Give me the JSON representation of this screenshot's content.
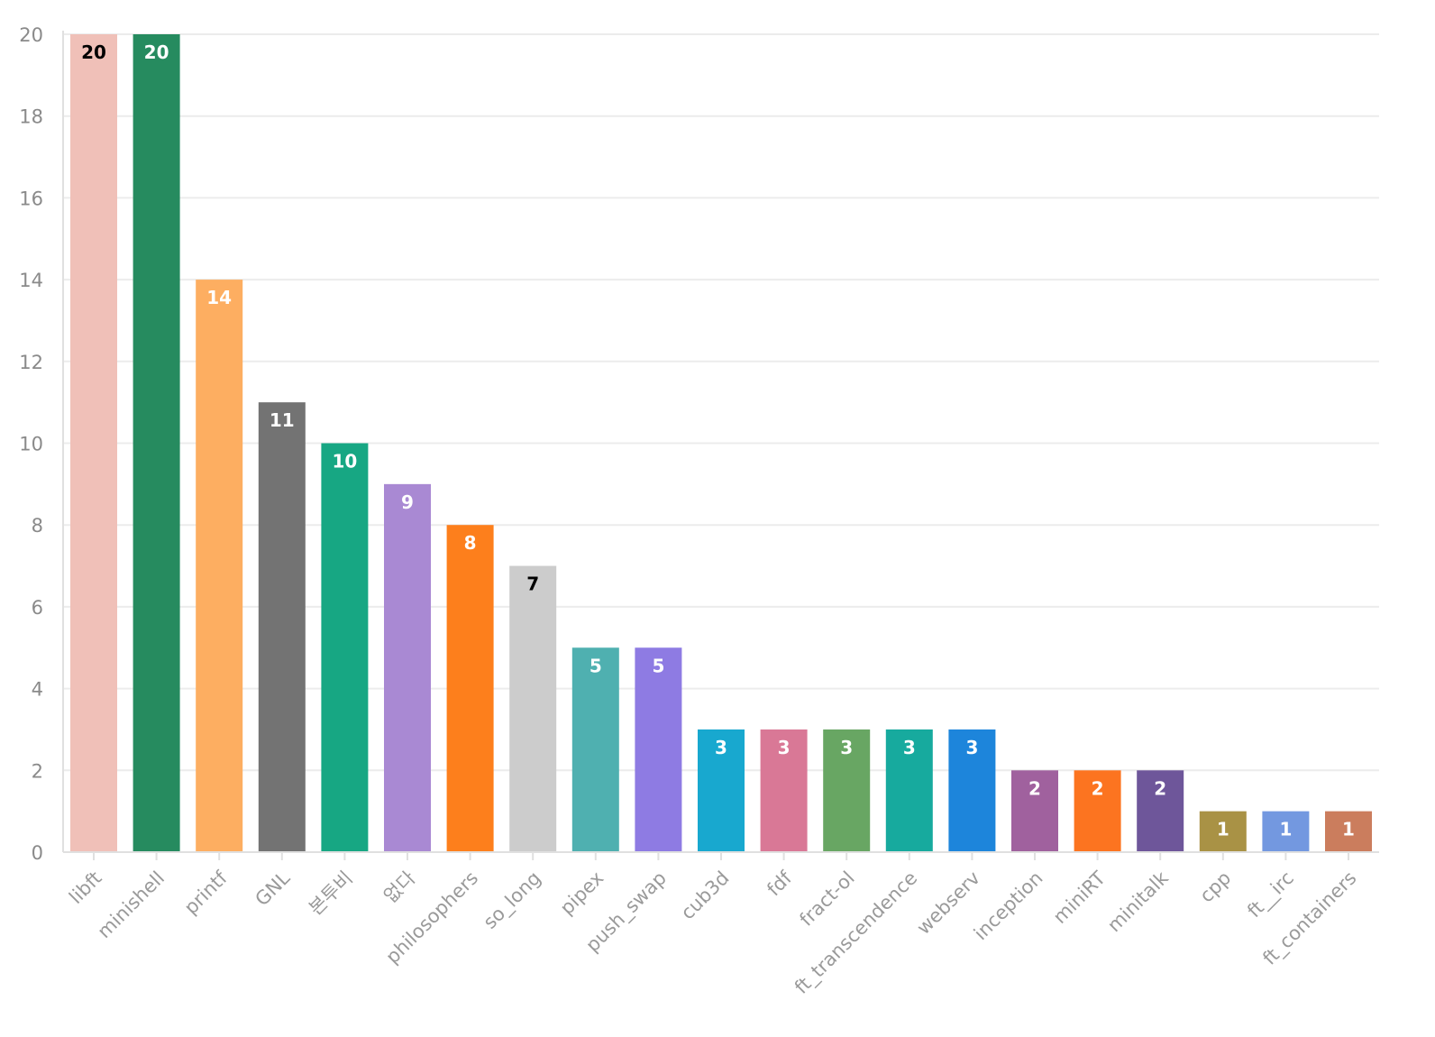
{
  "chart_data": {
    "type": "bar",
    "title": "",
    "xlabel": "",
    "ylabel": "",
    "ylim": [
      0,
      20
    ],
    "yticks": [
      0,
      2,
      4,
      6,
      8,
      10,
      12,
      14,
      16,
      18,
      20
    ],
    "grid": true,
    "categories": [
      "libft",
      "minishell",
      "printf",
      "GNL",
      "본투비",
      "없다",
      "philosophers",
      "so_long",
      "pipex",
      "push_swap",
      "cub3d",
      "fdf",
      "fract-ol",
      "ft_transcendence",
      "webserv",
      "inception",
      "miniRT",
      "minitalk",
      "cpp",
      "ft__irc",
      "ft_containers"
    ],
    "values": [
      20,
      20,
      14,
      11,
      10,
      9,
      8,
      7,
      5,
      5,
      3,
      3,
      3,
      3,
      3,
      2,
      2,
      2,
      1,
      1,
      1
    ],
    "colors": [
      "#f0c0b8",
      "#268b5f",
      "#fdae61",
      "#737373",
      "#17a783",
      "#a989d3",
      "#fd7f1c",
      "#cccccc",
      "#4fb0b0",
      "#8e7be3",
      "#18a8cf",
      "#d97896",
      "#68a663",
      "#17aa9e",
      "#1d85db",
      "#a0619e",
      "#fc7420",
      "#6e569a",
      "#a99245",
      "#7398e0",
      "#cb7d5d"
    ],
    "label_colors": [
      "#000000",
      "#ffffff",
      "#ffffff",
      "#ffffff",
      "#ffffff",
      "#ffffff",
      "#ffffff",
      "#000000",
      "#ffffff",
      "#ffffff",
      "#ffffff",
      "#ffffff",
      "#ffffff",
      "#ffffff",
      "#ffffff",
      "#ffffff",
      "#ffffff",
      "#ffffff",
      "#ffffff",
      "#ffffff",
      "#ffffff"
    ]
  }
}
